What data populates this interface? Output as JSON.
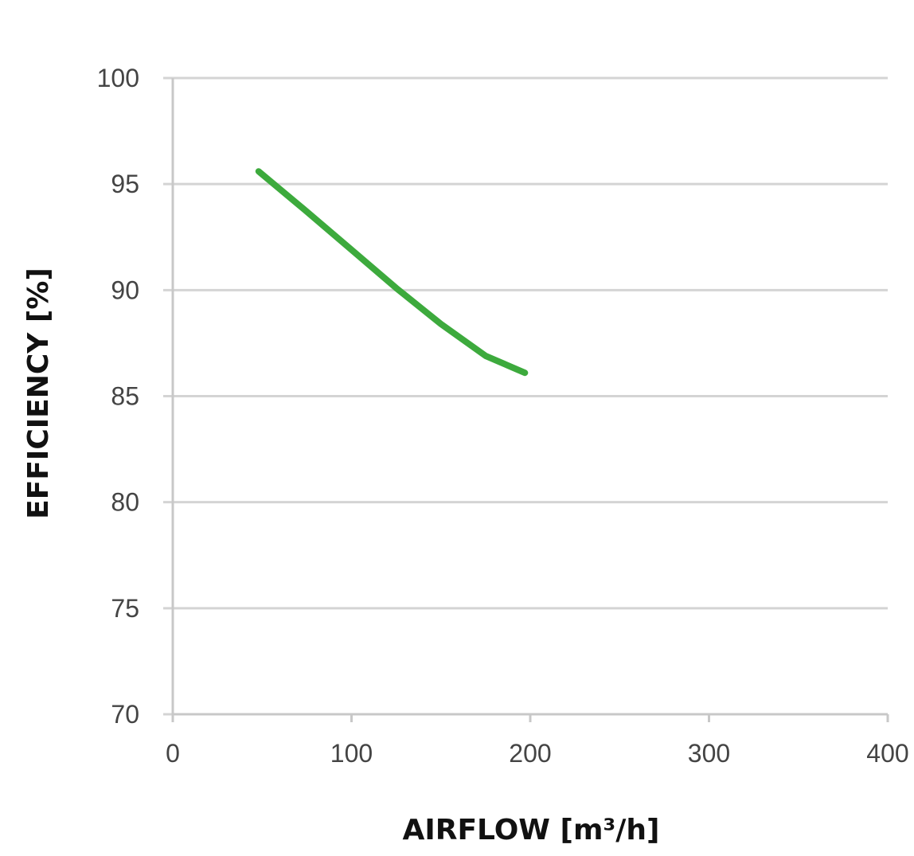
{
  "chart_data": {
    "type": "line",
    "title": "",
    "xlabel": "AIRFLOW [m³/h]",
    "ylabel": "EFFICIENCY [%]",
    "xlim": [
      0,
      400
    ],
    "ylim": [
      70,
      100
    ],
    "xticks": [
      "0",
      "100",
      "200",
      "300",
      "400"
    ],
    "yticks": [
      "70",
      "75",
      "80",
      "85",
      "90",
      "95",
      "100"
    ],
    "grid": "horizontal",
    "legend": "none",
    "series": [
      {
        "color": "#3daa3d",
        "x": [
          48,
          75,
          100,
          125,
          150,
          175,
          197
        ],
        "y": [
          95.6,
          93.7,
          91.9,
          90.1,
          88.4,
          86.9,
          86.1
        ]
      }
    ]
  }
}
